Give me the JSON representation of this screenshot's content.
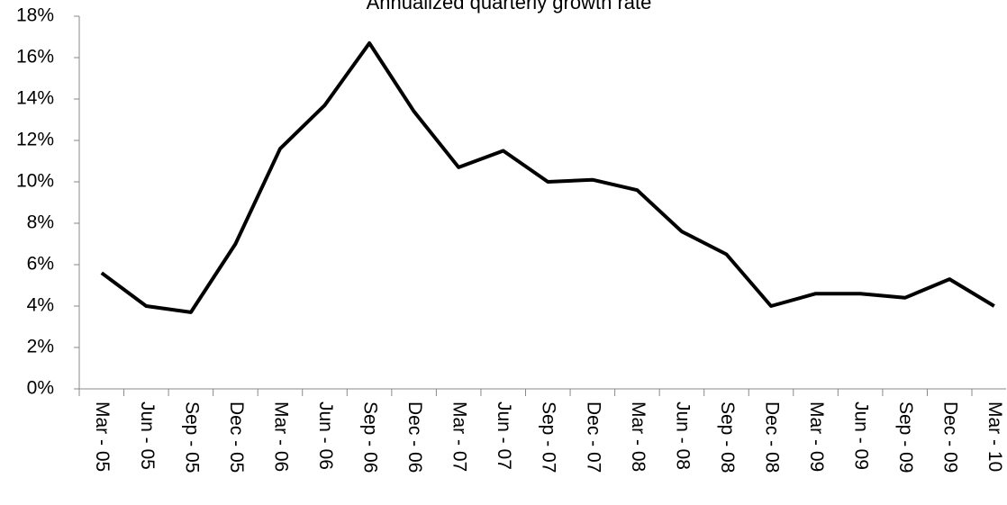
{
  "chart_data": {
    "type": "line",
    "title": "Annualized quarterly growth rate",
    "categories": [
      "Mar - 05",
      "Jun - 05",
      "Sep - 05",
      "Dec - 05",
      "Mar - 06",
      "Jun - 06",
      "Sep - 06",
      "Dec - 06",
      "Mar - 07",
      "Jun - 07",
      "Sep - 07",
      "Dec - 07",
      "Mar - 08",
      "Jun - 08",
      "Sep - 08",
      "Dec - 08",
      "Mar - 09",
      "Jun - 09",
      "Sep - 09",
      "Dec - 09",
      "Mar - 10"
    ],
    "values": [
      5.6,
      4.0,
      3.7,
      7.0,
      11.6,
      13.7,
      16.7,
      13.4,
      10.7,
      11.5,
      10.0,
      10.1,
      9.6,
      7.6,
      6.5,
      4.0,
      4.6,
      4.6,
      4.4,
      5.3,
      4.0
    ],
    "color": "#000000",
    "ylim": [
      0,
      18
    ],
    "yticks": [
      {
        "value": 0,
        "label": "0%"
      },
      {
        "value": 2,
        "label": "2%"
      },
      {
        "value": 4,
        "label": "4%"
      },
      {
        "value": 6,
        "label": "6%"
      },
      {
        "value": 8,
        "label": "8%"
      },
      {
        "value": 10,
        "label": "10%"
      },
      {
        "value": 12,
        "label": "12%"
      },
      {
        "value": 14,
        "label": "14%"
      },
      {
        "value": 16,
        "label": "16%"
      },
      {
        "value": 18,
        "label": "18%"
      }
    ],
    "grid": false
  }
}
